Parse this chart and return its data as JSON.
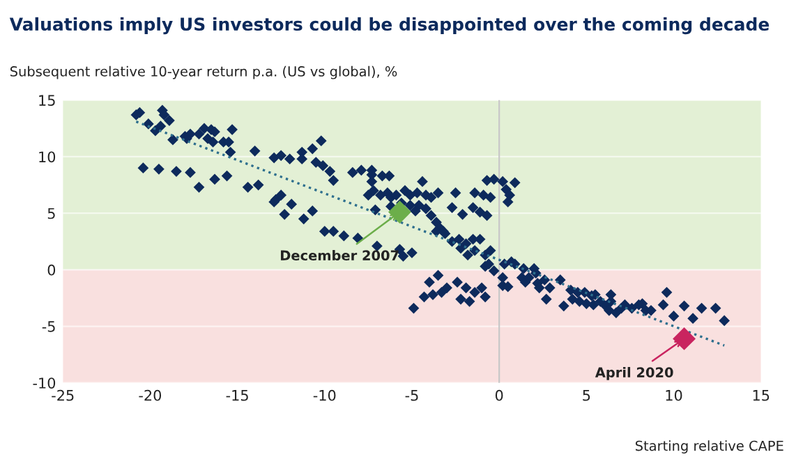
{
  "chart_data": {
    "type": "scatter",
    "title": "Valuations imply US investors could be disappointed over the coming decade",
    "ylabel": "Subsequent relative 10-year return p.a. (US vs global), %",
    "xlabel": "Starting relative CAPE",
    "xlim": [
      -25,
      15
    ],
    "xticks": [
      -25,
      -20,
      -15,
      -10,
      -5,
      0,
      5,
      10,
      15
    ],
    "ylim": [
      -10,
      15
    ],
    "yticks": [
      -10,
      -5,
      0,
      5,
      10,
      15
    ],
    "grid": "y",
    "marker": "diamond",
    "bands": [
      {
        "axis": "y",
        "from": 0,
        "to": 15,
        "color": "#e3f0d5"
      },
      {
        "axis": "y",
        "from": -10,
        "to": 0,
        "color": "#f9e0df"
      }
    ],
    "ref_lines": [
      {
        "axis": "x",
        "value": 0,
        "color": "#c8c8c8"
      }
    ],
    "series": [
      {
        "color": "#0d2a5c",
        "x": [
          -20.6,
          -20.8,
          -20.1,
          -19.7,
          -19.4,
          -19.3,
          -19.2,
          -18.9,
          -18.7,
          -18.0,
          -17.7,
          -17.9,
          -17.2,
          -16.9,
          -16.5,
          -16.3,
          -16.7,
          -16.4,
          -15.8,
          -15.5,
          -15.3,
          -15.4,
          -20.4,
          -19.5,
          -18.5,
          -17.7,
          -17.2,
          -16.3,
          -15.6,
          -14.4,
          -13.8,
          -14.0,
          -12.9,
          -12.5,
          -12.8,
          -12.5,
          -12.0,
          -11.3,
          -11.3,
          -10.7,
          -10.2,
          -10.5,
          -10.1,
          -9.7,
          -9.5,
          -12.9,
          -11.9,
          -12.3,
          -11.2,
          -10.7,
          -10.0,
          -9.5,
          -8.9,
          -8.1,
          -8.4,
          -7.9,
          -7.3,
          -7.3,
          -7.3,
          -6.7,
          -6.3,
          -7.5,
          -7.2,
          -6.8,
          -6.4,
          -6.2,
          -5.9,
          -5.4,
          -5.1,
          -4.7,
          -4.4,
          -4.2,
          -3.9,
          -3.5,
          -6.2,
          -5.6,
          -5.1,
          -4.8,
          -4.6,
          -4.2,
          -3.9,
          -3.6,
          -3.4,
          -3.6,
          -3.2,
          -7.1,
          -7.0,
          -5.7,
          -5.5,
          -5.0,
          -2.5,
          -1.4,
          -0.9,
          -0.5,
          -2.7,
          -2.1,
          -1.5,
          -1.1,
          -0.7,
          -0.7,
          -0.3,
          0.2,
          0.4,
          0.6,
          0.5,
          0.9,
          -3.1,
          -2.7,
          -2.3,
          -1.9,
          -1.5,
          -1.1,
          -1.4,
          -1.8,
          -2.2,
          -0.8,
          -0.5,
          -0.8,
          -0.6,
          0.3,
          -3.5,
          -4.0,
          -3.0,
          -3.8,
          -3.3,
          -2.4,
          -1.9,
          -1.4,
          -0.8,
          -2.2,
          -1.7,
          -4.3,
          -1.0,
          -0.3,
          0.2,
          0.2,
          -4.9,
          0.7,
          1.3,
          1.5,
          0.5,
          0.9,
          1.4,
          2.0,
          1.7,
          2.1,
          2.2,
          2.6,
          2.9,
          2.3,
          2.7,
          3.5,
          4.1,
          4.5,
          4.9,
          5.3,
          5.5,
          4.2,
          4.6,
          5.0,
          5.4,
          5.8,
          3.7,
          6.1,
          6.4,
          6.3,
          6.7,
          7.0,
          7.2,
          7.6,
          8.0,
          8.4,
          8.7,
          8.2,
          9.6,
          9.4,
          10.6,
          11.1,
          11.6,
          12.4,
          12.9,
          10.0,
          6.4
        ],
        "values": [
          13.9,
          13.7,
          12.9,
          12.3,
          12.7,
          14.1,
          13.7,
          13.2,
          11.5,
          11.8,
          12.0,
          11.6,
          12.0,
          12.5,
          12.4,
          12.2,
          11.6,
          11.3,
          11.3,
          11.3,
          12.4,
          10.4,
          9.0,
          8.9,
          8.7,
          8.6,
          7.3,
          8.0,
          8.3,
          7.3,
          7.5,
          10.5,
          9.9,
          10.1,
          6.2,
          6.6,
          9.8,
          10.4,
          9.8,
          10.7,
          11.4,
          9.5,
          9.2,
          8.7,
          7.9,
          6.0,
          5.8,
          4.9,
          4.5,
          5.2,
          3.4,
          3.4,
          3.0,
          2.8,
          8.6,
          8.8,
          8.8,
          8.4,
          7.8,
          8.3,
          8.3,
          6.6,
          7.0,
          6.6,
          6.8,
          6.4,
          6.6,
          7.0,
          6.6,
          6.8,
          7.8,
          6.6,
          6.4,
          6.8,
          5.6,
          5.9,
          5.7,
          5.2,
          5.7,
          5.4,
          4.8,
          4.2,
          3.7,
          3.4,
          3.4,
          5.3,
          2.1,
          1.8,
          1.2,
          1.5,
          6.8,
          6.8,
          6.6,
          6.4,
          5.5,
          4.9,
          5.5,
          5.1,
          4.8,
          7.9,
          8.0,
          7.8,
          7.1,
          6.6,
          6.0,
          7.7,
          3.2,
          2.5,
          2.7,
          2.3,
          2.7,
          2.7,
          1.7,
          1.3,
          1.9,
          1.3,
          1.7,
          0.3,
          0.5,
          0.5,
          -0.5,
          -1.1,
          -1.6,
          -2.2,
          -2.0,
          -1.1,
          -1.6,
          -2.0,
          -2.4,
          -2.6,
          -2.8,
          -2.4,
          -1.6,
          -0.1,
          -0.7,
          -1.4,
          -3.4,
          0.7,
          -0.7,
          -1.1,
          -1.5,
          0.5,
          0.1,
          0.1,
          -0.7,
          -0.3,
          -1.2,
          -0.9,
          -1.6,
          -1.6,
          -2.6,
          -0.9,
          -1.8,
          -2.0,
          -2.0,
          -2.3,
          -2.2,
          -2.6,
          -2.8,
          -3.0,
          -3.1,
          -2.8,
          -3.2,
          -3.2,
          -2.8,
          -3.6,
          -3.8,
          -3.4,
          -3.1,
          -3.4,
          -3.1,
          -3.6,
          -3.6,
          -3.0,
          -2.0,
          -3.1,
          -3.2,
          -4.3,
          -3.4,
          -3.4,
          -4.5,
          -4.1,
          -2.2
        ]
      },
      {
        "type": "line",
        "color": "#2e6f8e",
        "line_style": "dotted",
        "marker": "none",
        "x": [
          -20.8,
          12.9
        ],
        "values": [
          13.1,
          -6.7
        ]
      },
      {
        "type": "scatter",
        "color": "#6cae4a",
        "x": [
          -5.7
        ],
        "values": [
          5.1
        ]
      },
      {
        "type": "scatter",
        "color": "#c9245f",
        "x": [
          10.6
        ],
        "values": [
          -6.1
        ]
      }
    ],
    "annotations": [
      {
        "text": "December 2007",
        "x": -5.7,
        "y": 5.1
      },
      {
        "text": "April 2020",
        "x": 10.6,
        "y": -6.1
      }
    ]
  }
}
